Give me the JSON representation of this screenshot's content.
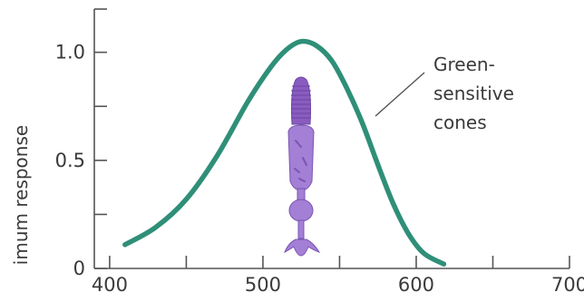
{
  "chart_data": {
    "type": "line",
    "title": "",
    "xlabel": "",
    "ylabel": "imum response",
    "xlim": [
      390,
      700
    ],
    "ylim": [
      0,
      1.2
    ],
    "x_ticks": [
      400,
      500,
      600,
      700
    ],
    "x_tick_labels": [
      "400",
      "500",
      "600",
      "700"
    ],
    "y_ticks": [
      0,
      0.5,
      1.0
    ],
    "y_tick_labels": [
      "0",
      "0.5",
      "1.0"
    ],
    "grid": false,
    "series": [
      {
        "name": "Green-sensitive cones",
        "color": "#2f8f78",
        "x": [
          410,
          430,
          450,
          470,
          490,
          505,
          515,
          525,
          535,
          545,
          555,
          565,
          575,
          585,
          595,
          605,
          618
        ],
        "y": [
          0.11,
          0.19,
          0.32,
          0.52,
          0.77,
          0.93,
          1.01,
          1.05,
          1.03,
          0.96,
          0.83,
          0.67,
          0.48,
          0.3,
          0.16,
          0.07,
          0.02
        ]
      }
    ],
    "annotations": [
      {
        "lines": [
          "Green-",
          "sensitive",
          "cones"
        ]
      }
    ],
    "illustration": {
      "name": "cone-cell",
      "color": "#8f63c4"
    }
  }
}
